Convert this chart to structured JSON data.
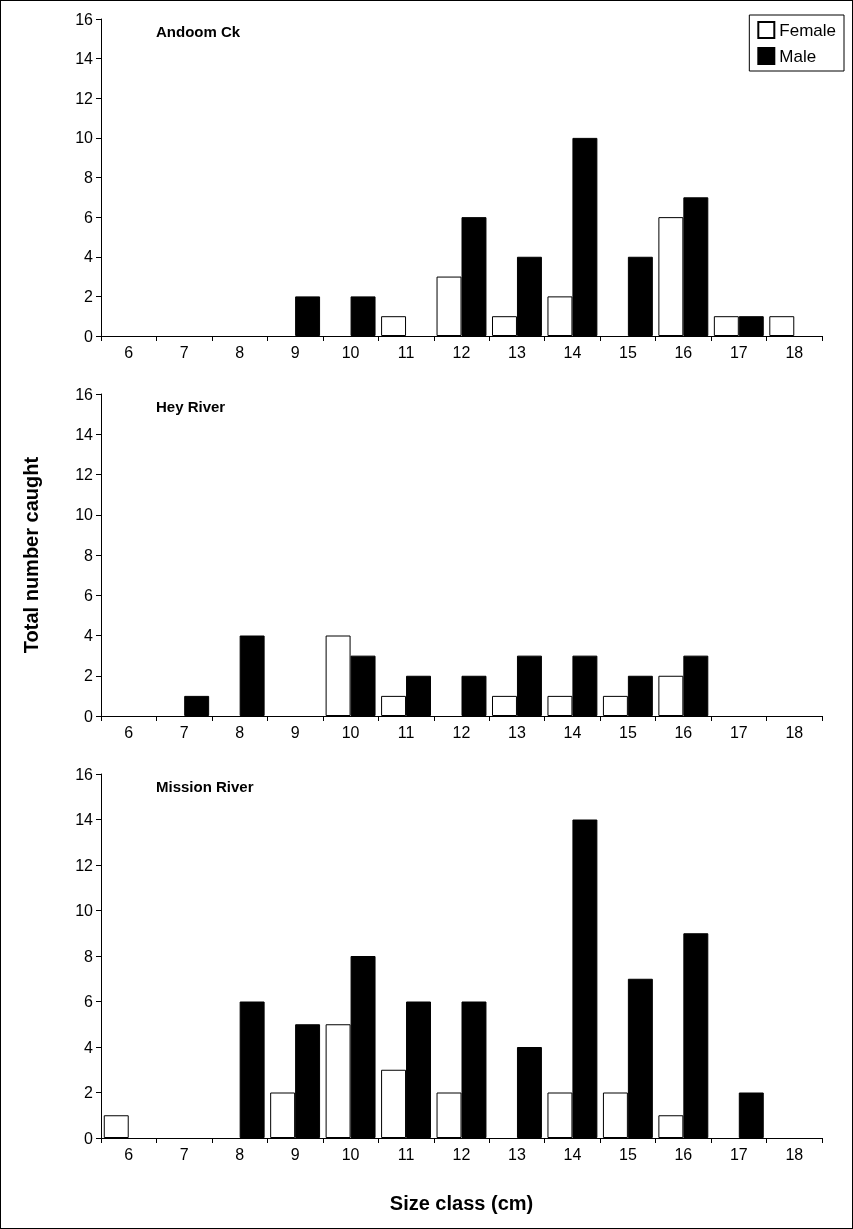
{
  "chart_data": [
    {
      "type": "bar",
      "title": "Andoom Ck",
      "categories": [
        "6",
        "7",
        "8",
        "9",
        "10",
        "11",
        "12",
        "13",
        "14",
        "15",
        "16",
        "17",
        "18"
      ],
      "series": [
        {
          "name": "Female",
          "color": "#ffffff",
          "values": [
            0,
            0,
            0,
            0,
            0,
            1,
            3,
            1,
            2,
            0,
            6,
            1,
            1
          ]
        },
        {
          "name": "Male",
          "color": "#000000",
          "values": [
            0,
            0,
            0,
            2,
            2,
            0,
            6,
            4,
            10,
            4,
            7,
            1,
            0
          ]
        }
      ],
      "ylim": [
        0,
        16
      ],
      "yticks": [
        0,
        2,
        4,
        6,
        8,
        10,
        12,
        14,
        16
      ],
      "grid": false,
      "legend": "top right"
    },
    {
      "type": "bar",
      "title": "Hey River",
      "ylabel": "Total number caught",
      "categories": [
        "6",
        "7",
        "8",
        "9",
        "10",
        "11",
        "12",
        "13",
        "14",
        "15",
        "16",
        "17",
        "18"
      ],
      "series": [
        {
          "color": "#ffffff",
          "values": [
            0,
            0,
            0,
            0,
            4,
            1,
            0,
            1,
            1,
            1,
            2,
            0,
            0
          ]
        },
        {
          "color": "#000000",
          "values": [
            0,
            1,
            4,
            0,
            3,
            2,
            2,
            3,
            3,
            2,
            3,
            0,
            0
          ]
        }
      ],
      "ylim": [
        0,
        16
      ],
      "yticks": [
        0,
        2,
        4,
        6,
        8,
        10,
        12,
        14,
        16
      ],
      "grid": false
    },
    {
      "type": "bar",
      "title": "Mission River",
      "xlabel": "Size class (cm)",
      "categories": [
        "6",
        "7",
        "8",
        "9",
        "10",
        "11",
        "12",
        "13",
        "14",
        "15",
        "16",
        "17",
        "18"
      ],
      "series": [
        {
          "color": "#ffffff",
          "values": [
            1,
            0,
            0,
            2,
            5,
            3,
            2,
            0,
            2,
            2,
            1,
            0,
            0
          ]
        },
        {
          "color": "#000000",
          "values": [
            0,
            0,
            6,
            5,
            8,
            6,
            6,
            4,
            14,
            7,
            9,
            2,
            0
          ]
        }
      ],
      "ylim": [
        0,
        16
      ],
      "yticks": [
        0,
        2,
        4,
        6,
        8,
        10,
        12,
        14,
        16
      ],
      "grid": false
    }
  ]
}
